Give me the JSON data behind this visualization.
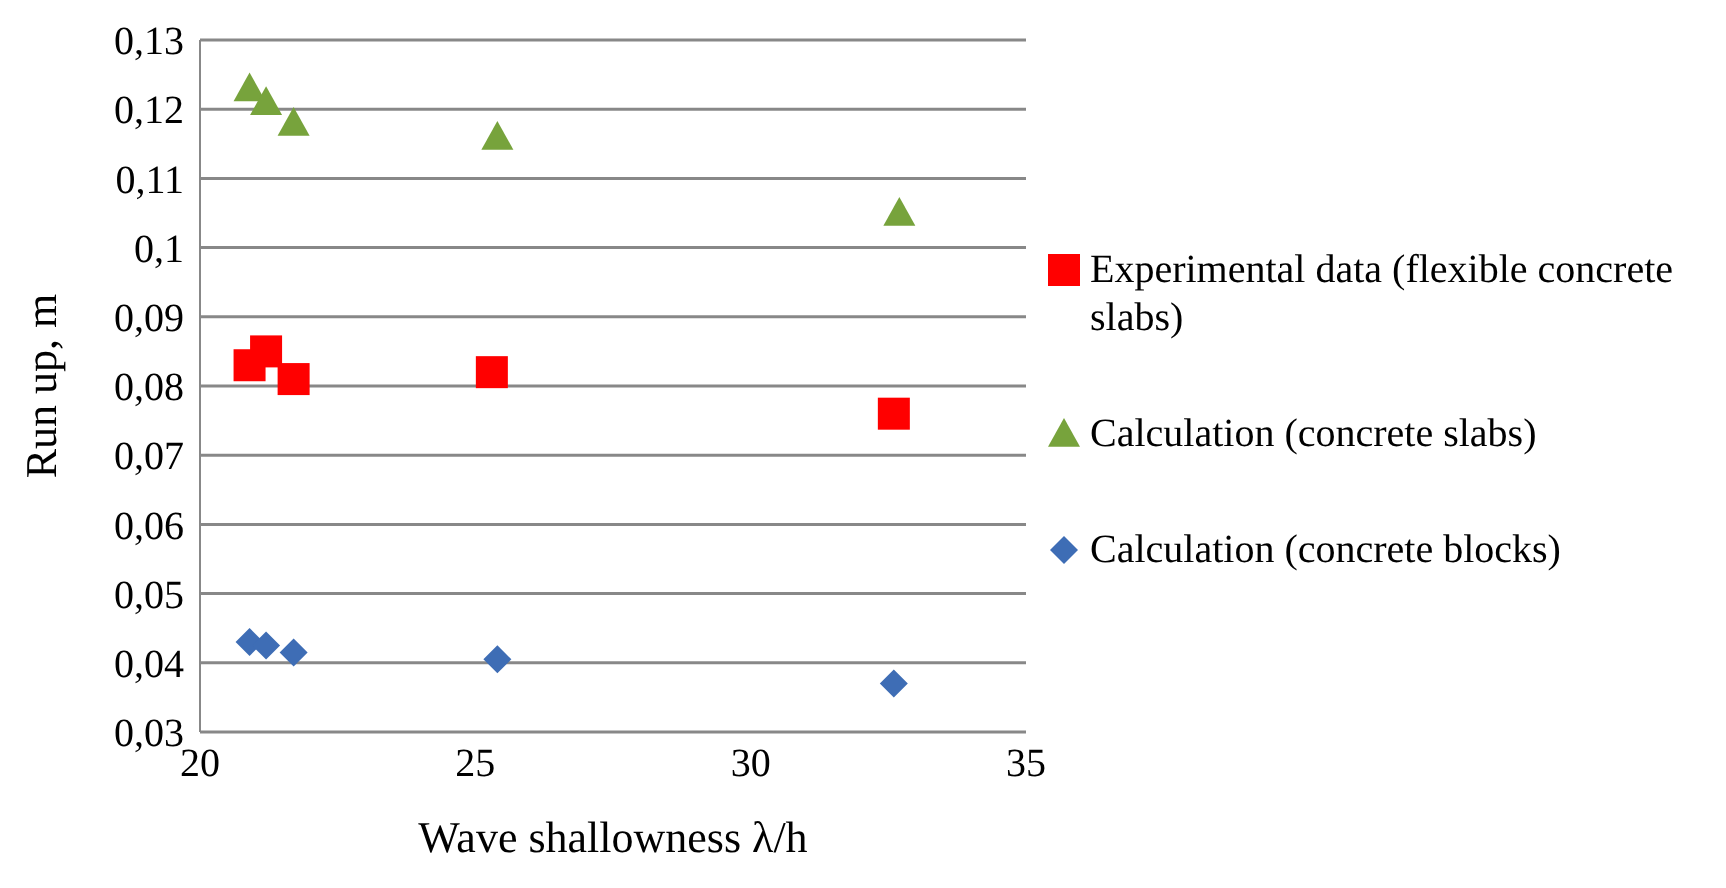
{
  "chart_data": {
    "type": "scatter",
    "xlabel": "Wave shallowness λ/h",
    "ylabel": "Run up, m",
    "series": [
      {
        "name": "Experimental data (flexible concrete slabs)",
        "color": "#ff0000",
        "marker": "square",
        "x": [
          20.9,
          21.2,
          21.7,
          25.3,
          32.6
        ],
        "values": [
          0.083,
          0.085,
          0.081,
          0.082,
          0.076
        ]
      },
      {
        "name": "Calculation (concrete slabs)",
        "color": "#77a33c",
        "marker": "triangle",
        "x": [
          20.9,
          21.2,
          21.7,
          25.4,
          32.7
        ],
        "values": [
          0.123,
          0.121,
          0.118,
          0.116,
          0.105
        ]
      },
      {
        "name": "Calculation (concrete blocks)",
        "color": "#3e6db5",
        "marker": "diamond",
        "x": [
          20.9,
          21.2,
          21.7,
          25.4,
          32.6
        ],
        "values": [
          0.043,
          0.0425,
          0.0415,
          0.0405,
          0.037
        ]
      }
    ],
    "xlim": [
      20,
      35
    ],
    "xticks": [
      20,
      25,
      30,
      35
    ],
    "ylim": [
      0.03,
      0.13
    ],
    "yticks": [
      {
        "value": 0.03,
        "label": "0,03"
      },
      {
        "value": 0.04,
        "label": "0,04"
      },
      {
        "value": 0.05,
        "label": "0,05"
      },
      {
        "value": 0.06,
        "label": "0,06"
      },
      {
        "value": 0.07,
        "label": "0,07"
      },
      {
        "value": 0.08,
        "label": "0,08"
      },
      {
        "value": 0.09,
        "label": "0,09"
      },
      {
        "value": 0.1,
        "label": "0,1"
      },
      {
        "value": 0.11,
        "label": "0,11"
      },
      {
        "value": 0.12,
        "label": "0,12"
      },
      {
        "value": 0.13,
        "label": "0,13"
      }
    ],
    "grid": "y",
    "legend": "right"
  }
}
